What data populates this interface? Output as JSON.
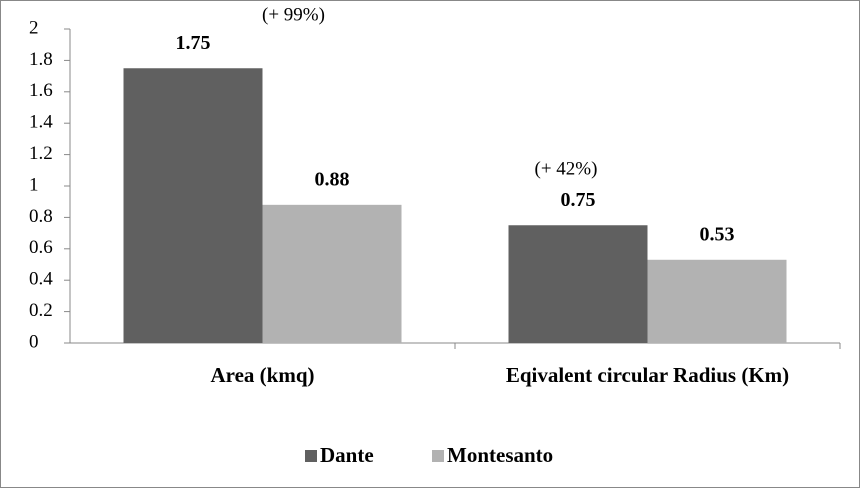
{
  "chart_data": {
    "type": "bar",
    "categories": [
      "Area (kmq)",
      "Eqivalent circular Radius (Km)"
    ],
    "series": [
      {
        "name": "Dante",
        "color": "#606060",
        "values": [
          1.75,
          0.75
        ]
      },
      {
        "name": "Montesanto",
        "color": "#b2b2b2",
        "values": [
          0.88,
          0.53
        ]
      }
    ],
    "annotations": [
      "(+ 99%)",
      "(+ 42%)"
    ],
    "ylim": [
      0,
      2
    ],
    "yticks": [
      0,
      0.2,
      0.4,
      0.6,
      0.8,
      1,
      1.2,
      1.4,
      1.6,
      1.8,
      2
    ],
    "legend": "bottom"
  }
}
